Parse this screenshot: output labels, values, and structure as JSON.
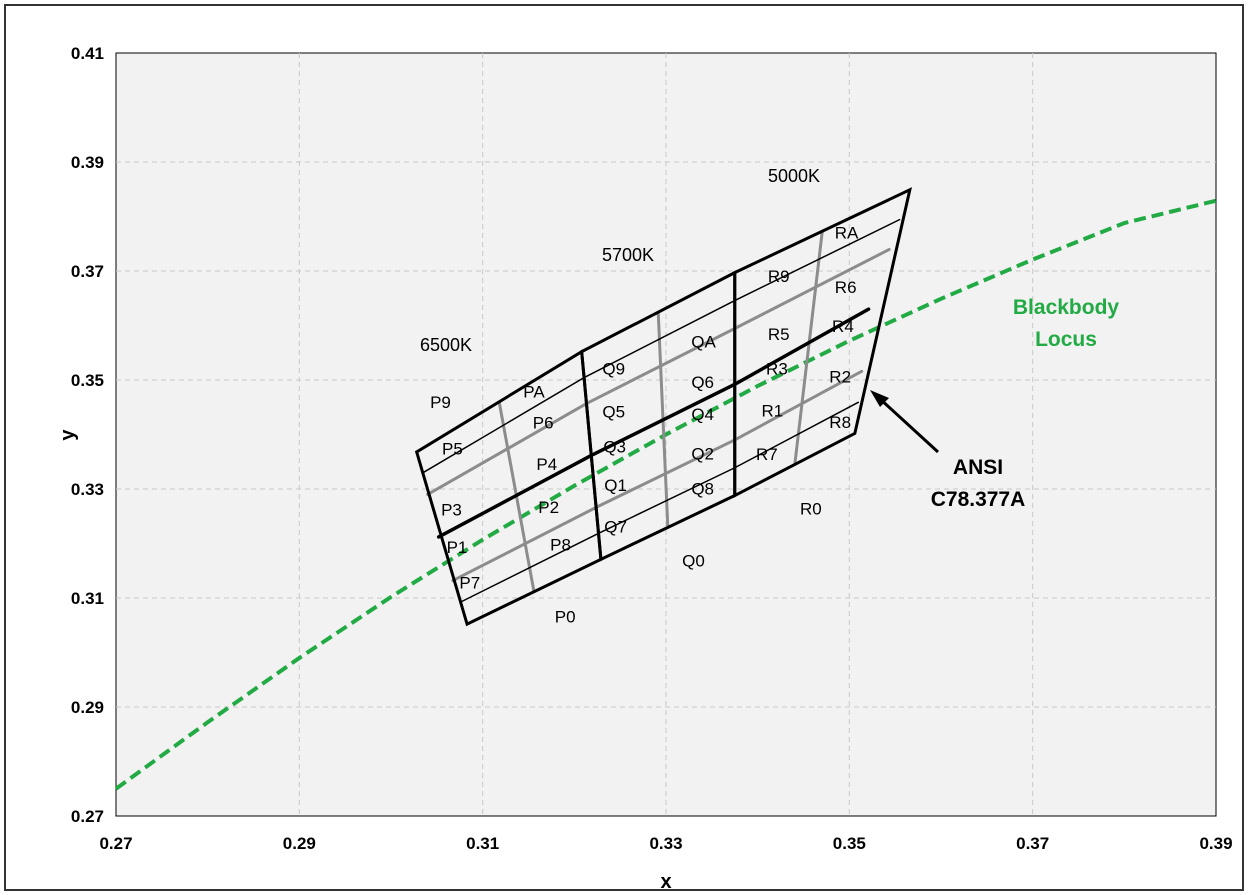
{
  "chart_data": {
    "type": "line",
    "title": "",
    "xlabel": "x",
    "ylabel": "y",
    "xlim": [
      0.27,
      0.39
    ],
    "ylim": [
      0.27,
      0.41
    ],
    "x_ticks": [
      "0.27",
      "0.29",
      "0.31",
      "0.33",
      "0.35",
      "0.37",
      "0.39"
    ],
    "y_ticks": [
      "0.27",
      "0.29",
      "0.31",
      "0.33",
      "0.35",
      "0.37",
      "0.39",
      "0.41"
    ],
    "grid": true,
    "plot_background": "#f2f2f2",
    "series": [
      {
        "name": "Blackbody Locus",
        "style": "dashed",
        "color": "#22aa44",
        "x": [
          0.27,
          0.28,
          0.29,
          0.3,
          0.31,
          0.32,
          0.33,
          0.34,
          0.35,
          0.36,
          0.37,
          0.38,
          0.39
        ],
        "y": [
          0.275,
          0.2872,
          0.299,
          0.3102,
          0.3207,
          0.3306,
          0.34,
          0.3489,
          0.3572,
          0.3649,
          0.3721,
          0.3788,
          0.3829
        ]
      }
    ],
    "quadrangles": [
      {
        "label": "6500K",
        "corners": {
          "tl": [
            0.3028,
            0.3368
          ],
          "bl": [
            0.3083,
            0.3052
          ],
          "br": [
            0.3229,
            0.3171
          ],
          "tr": [
            0.3208,
            0.3552
          ]
        },
        "middle_horizontal": [
          [
            0.3052,
            0.3212
          ],
          [
            0.3219,
            0.3362
          ]
        ]
      },
      {
        "label": "5700K",
        "corners": {
          "tl": [
            0.3208,
            0.3552
          ],
          "bl": [
            0.3229,
            0.3171
          ],
          "br": [
            0.3375,
            0.3288
          ],
          "tr": [
            0.3375,
            0.3697
          ]
        },
        "middle_horizontal": [
          [
            0.3219,
            0.3362
          ],
          [
            0.3375,
            0.3492
          ]
        ]
      },
      {
        "label": "5000K",
        "corners": {
          "tl": [
            0.3375,
            0.3697
          ],
          "bl": [
            0.3375,
            0.3288
          ],
          "br": [
            0.3506,
            0.3402
          ],
          "tr": [
            0.3566,
            0.3849
          ]
        },
        "middle_horizontal": [
          [
            0.3375,
            0.3492
          ],
          [
            0.3521,
            0.363
          ]
        ]
      }
    ],
    "bins": [
      "P9",
      "PA",
      "P5",
      "P6",
      "P3",
      "P4",
      "P1",
      "P2",
      "P7",
      "P8",
      "P0",
      "Q9",
      "QA",
      "Q5",
      "Q6",
      "Q3",
      "Q4",
      "Q1",
      "Q2",
      "Q7",
      "Q8",
      "Q0",
      "R9",
      "RA",
      "R5",
      "R6",
      "R3",
      "R4",
      "R1",
      "R2",
      "R7",
      "R8",
      "R0"
    ],
    "annotations": [
      "6500K",
      "5700K",
      "5000K",
      "Blackbody Locus",
      "ANSI",
      "C78.377A"
    ]
  },
  "labels": {
    "xlabel": "x",
    "ylabel": "y",
    "cct_6500": "6500K",
    "cct_5700": "5700K",
    "cct_5000": "5000K",
    "locus_line1": "Blackbody",
    "locus_line2": "Locus",
    "ansi_line1": "ANSI",
    "ansi_line2": "C78.377A"
  },
  "colors": {
    "locus": "#22aa44",
    "grid": "#c8c8c8",
    "thick_line": "#000000",
    "sub_line": "#8c8c8c"
  }
}
